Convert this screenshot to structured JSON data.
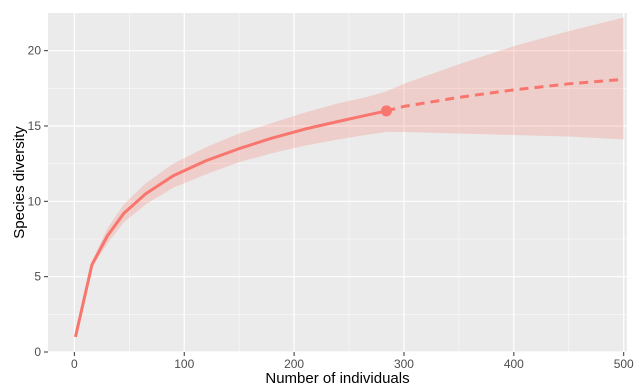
{
  "chart_data": {
    "type": "line",
    "title": "",
    "xlabel": "Number of individuals",
    "ylabel": "Species diversity",
    "xlim": [
      -24,
      503
    ],
    "ylim": [
      0,
      22.5
    ],
    "x_ticks": [
      0,
      100,
      200,
      300,
      400,
      500
    ],
    "y_ticks": [
      0,
      5,
      10,
      15,
      20
    ],
    "grid": true,
    "legend": "none",
    "colors": {
      "series": "#f8766d",
      "band": "#f8766d",
      "panel": "#ebebeb",
      "grid": "#ffffff"
    },
    "series": [
      {
        "style": "solid",
        "x": [
          1,
          16,
          30,
          45,
          65,
          90,
          120,
          150,
          180,
          210,
          240,
          265,
          284
        ],
        "y": [
          1.0,
          5.8,
          7.7,
          9.2,
          10.5,
          11.7,
          12.7,
          13.5,
          14.2,
          14.8,
          15.3,
          15.7,
          16.0
        ],
        "band_lower": [
          1.0,
          5.6,
          7.2,
          8.6,
          9.8,
          10.9,
          11.8,
          12.6,
          13.2,
          13.7,
          14.1,
          14.4,
          14.6
        ],
        "band_upper": [
          1.0,
          6.0,
          8.2,
          9.8,
          11.2,
          12.5,
          13.6,
          14.5,
          15.2,
          15.9,
          16.5,
          16.9,
          17.3
        ]
      },
      {
        "style": "dashed",
        "x": [
          284,
          300,
          350,
          400,
          450,
          500
        ],
        "y": [
          16.0,
          16.3,
          16.9,
          17.4,
          17.8,
          18.1
        ],
        "band_lower": [
          14.6,
          14.6,
          14.5,
          14.4,
          14.3,
          14.1
        ],
        "band_upper": [
          17.3,
          17.8,
          19.1,
          20.3,
          21.3,
          22.2
        ]
      }
    ],
    "points": [
      {
        "x": 284,
        "y": 16.0
      }
    ]
  }
}
